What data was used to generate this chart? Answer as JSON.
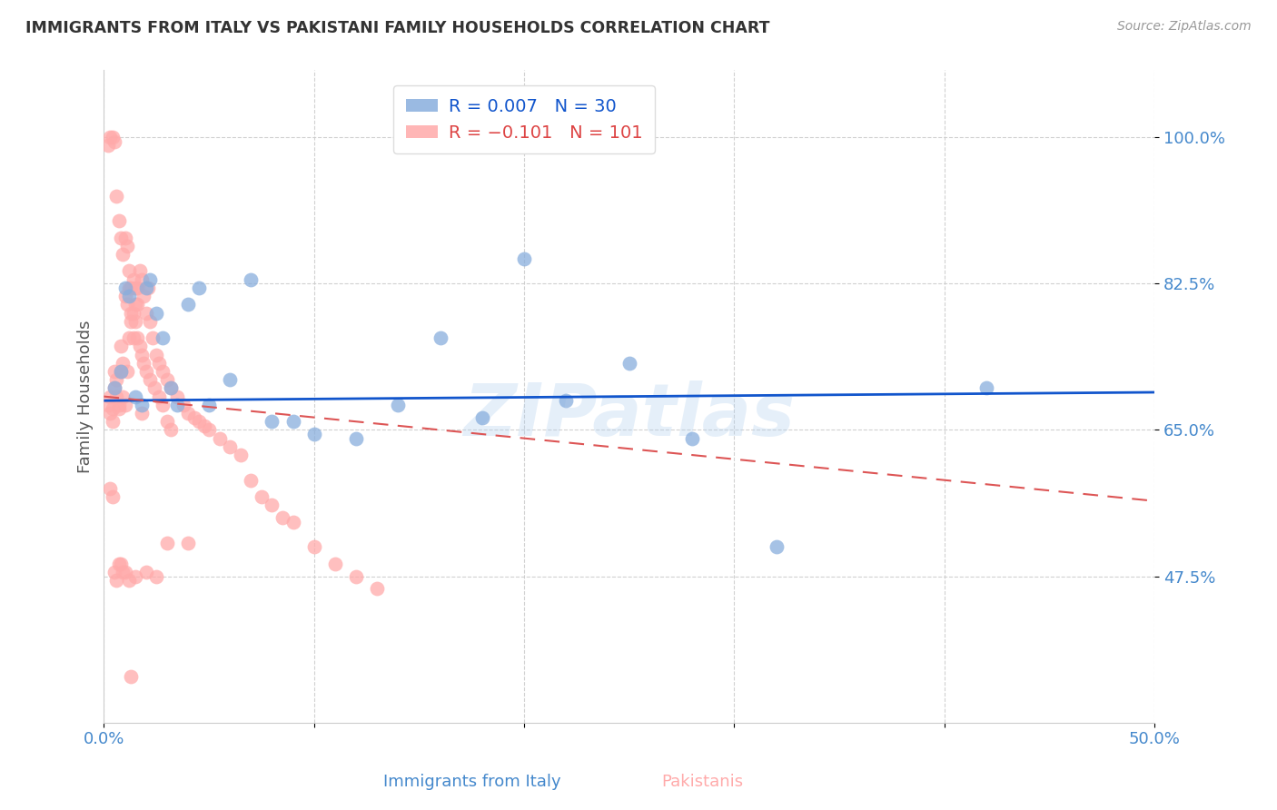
{
  "title": "IMMIGRANTS FROM ITALY VS PAKISTANI FAMILY HOUSEHOLDS CORRELATION CHART",
  "source": "Source: ZipAtlas.com",
  "xlabel_italy": "Immigrants from Italy",
  "xlabel_pakistanis": "Pakistanis",
  "ylabel": "Family Households",
  "xlim": [
    0.0,
    0.5
  ],
  "ylim": [
    0.3,
    1.08
  ],
  "xtick_vals": [
    0.0,
    0.1,
    0.2,
    0.3,
    0.4,
    0.5
  ],
  "xtick_labels": [
    "0.0%",
    "",
    "",
    "",
    "",
    "50.0%"
  ],
  "ytick_vals": [
    0.475,
    0.65,
    0.825,
    1.0
  ],
  "ytick_labels": [
    "47.5%",
    "65.0%",
    "82.5%",
    "100.0%"
  ],
  "italy_color": "#88AEDD",
  "pakistan_color": "#FFAAAA",
  "trendline_italy_color": "#1155CC",
  "trendline_pakistan_color": "#DD5555",
  "watermark": "ZIPatlas",
  "italy_scatter_x": [
    0.005,
    0.008,
    0.01,
    0.012,
    0.015,
    0.018,
    0.02,
    0.022,
    0.025,
    0.028,
    0.032,
    0.035,
    0.04,
    0.045,
    0.05,
    0.06,
    0.07,
    0.08,
    0.09,
    0.1,
    0.12,
    0.14,
    0.16,
    0.18,
    0.2,
    0.22,
    0.25,
    0.28,
    0.32,
    0.42
  ],
  "italy_scatter_y": [
    0.7,
    0.72,
    0.82,
    0.81,
    0.69,
    0.68,
    0.82,
    0.83,
    0.79,
    0.76,
    0.7,
    0.68,
    0.8,
    0.82,
    0.68,
    0.71,
    0.83,
    0.66,
    0.66,
    0.645,
    0.64,
    0.68,
    0.76,
    0.665,
    0.855,
    0.685,
    0.73,
    0.64,
    0.51,
    0.7
  ],
  "pakistan_scatter_x": [
    0.002,
    0.003,
    0.003,
    0.004,
    0.004,
    0.005,
    0.005,
    0.006,
    0.006,
    0.007,
    0.007,
    0.008,
    0.008,
    0.009,
    0.009,
    0.01,
    0.01,
    0.011,
    0.011,
    0.012,
    0.012,
    0.013,
    0.013,
    0.014,
    0.014,
    0.015,
    0.015,
    0.016,
    0.016,
    0.017,
    0.018,
    0.019,
    0.02,
    0.021,
    0.022,
    0.023,
    0.025,
    0.026,
    0.028,
    0.03,
    0.032,
    0.035,
    0.038,
    0.04,
    0.043,
    0.045,
    0.048,
    0.05,
    0.055,
    0.06,
    0.065,
    0.07,
    0.075,
    0.08,
    0.085,
    0.09,
    0.1,
    0.11,
    0.12,
    0.13,
    0.002,
    0.003,
    0.004,
    0.005,
    0.006,
    0.007,
    0.008,
    0.009,
    0.01,
    0.011,
    0.012,
    0.013,
    0.014,
    0.015,
    0.016,
    0.017,
    0.018,
    0.019,
    0.02,
    0.022,
    0.024,
    0.026,
    0.028,
    0.03,
    0.032,
    0.003,
    0.004,
    0.005,
    0.006,
    0.007,
    0.008,
    0.009,
    0.01,
    0.012,
    0.015,
    0.02,
    0.025,
    0.03,
    0.04,
    0.018,
    0.013
  ],
  "pakistan_scatter_y": [
    0.68,
    0.69,
    0.67,
    0.66,
    0.675,
    0.7,
    0.72,
    0.69,
    0.71,
    0.675,
    0.68,
    0.72,
    0.75,
    0.69,
    0.73,
    0.81,
    0.68,
    0.72,
    0.8,
    0.76,
    0.82,
    0.79,
    0.78,
    0.83,
    0.76,
    0.82,
    0.78,
    0.8,
    0.82,
    0.84,
    0.83,
    0.81,
    0.79,
    0.82,
    0.78,
    0.76,
    0.74,
    0.73,
    0.72,
    0.71,
    0.7,
    0.69,
    0.68,
    0.67,
    0.665,
    0.66,
    0.655,
    0.65,
    0.64,
    0.63,
    0.62,
    0.59,
    0.57,
    0.56,
    0.545,
    0.54,
    0.51,
    0.49,
    0.475,
    0.46,
    0.99,
    1.0,
    1.0,
    0.995,
    0.93,
    0.9,
    0.88,
    0.86,
    0.88,
    0.87,
    0.84,
    0.82,
    0.79,
    0.8,
    0.76,
    0.75,
    0.74,
    0.73,
    0.72,
    0.71,
    0.7,
    0.69,
    0.68,
    0.66,
    0.65,
    0.58,
    0.57,
    0.48,
    0.47,
    0.49,
    0.49,
    0.48,
    0.48,
    0.47,
    0.475,
    0.48,
    0.475,
    0.515,
    0.515,
    0.67,
    0.355
  ],
  "italy_trend_x": [
    0.0,
    0.5
  ],
  "italy_trend_y": [
    0.685,
    0.695
  ],
  "pakistan_trend_x": [
    0.0,
    0.5
  ],
  "pakistan_trend_y": [
    0.69,
    0.565
  ]
}
